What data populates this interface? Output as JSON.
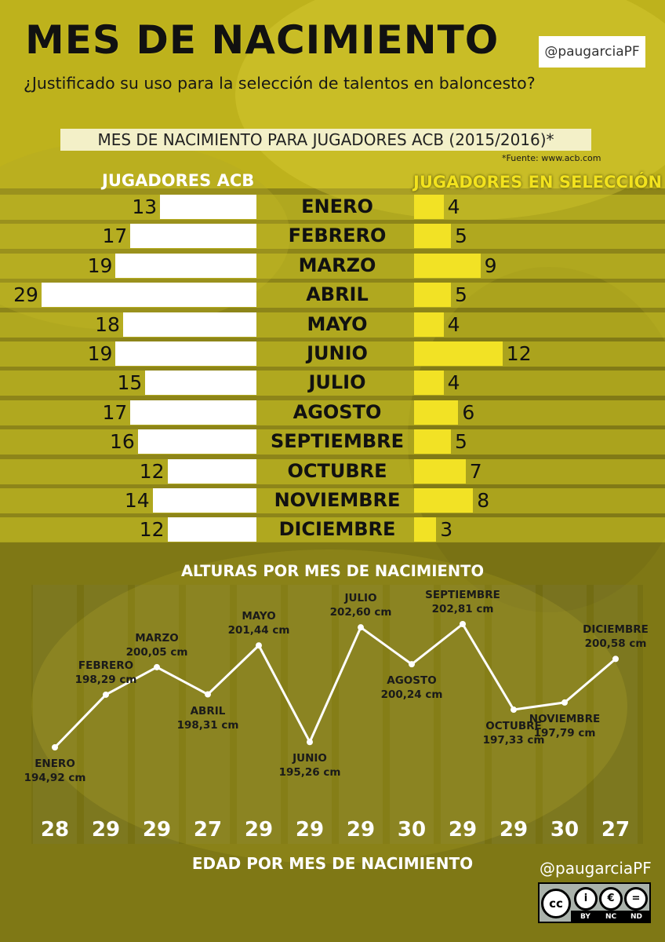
{
  "title": "MES DE NACIMIENTO",
  "subtitle": "¿Justificado su uso para la selección de talentos en baloncesto?",
  "handle": "@paugarciaPF",
  "section_title": "MES DE NACIMIENTO PARA JUGADORES ACB (2015/2016)*",
  "source_note": "*Fuente: www.acb.com",
  "license": {
    "icons": [
      "cc-icon",
      "by-icon",
      "nc-icon",
      "nd-icon"
    ],
    "labels": [
      "BY",
      "NC",
      "ND"
    ]
  },
  "colors": {
    "accent_yellow": "#f2e225",
    "background": "#8c8518",
    "bar_white": "#ffffff"
  },
  "chart_data": [
    {
      "type": "bar",
      "categories": [
        "ENERO",
        "FEBRERO",
        "MARZO",
        "ABRIL",
        "MAYO",
        "JUNIO",
        "JULIO",
        "AGOSTO",
        "SEPTIEMBRE",
        "OCTUBRE",
        "NOVIEMBRE",
        "DICIEMBRE"
      ],
      "series": [
        {
          "name": "JUGADORES ACB",
          "values": [
            13,
            17,
            19,
            29,
            18,
            19,
            15,
            17,
            16,
            12,
            14,
            12
          ]
        },
        {
          "name": "JUGADORES EN SELECCIÓN",
          "values": [
            4,
            5,
            9,
            5,
            4,
            12,
            4,
            6,
            5,
            7,
            8,
            3
          ]
        }
      ]
    },
    {
      "type": "line",
      "title": "ALTURAS POR MES DE NACIMIENTO",
      "categories": [
        "ENERO",
        "FEBRERO",
        "MARZO",
        "ABRIL",
        "MAYO",
        "JUNIO",
        "JULIO",
        "AGOSTO",
        "SEPTIEMBRE",
        "OCTUBRE",
        "NOVIEMBRE",
        "DICIEMBRE"
      ],
      "values": [
        194.92,
        198.29,
        200.05,
        198.31,
        201.44,
        195.26,
        202.6,
        200.24,
        202.81,
        197.33,
        197.79,
        200.58
      ],
      "value_labels": [
        "194,92 cm",
        "198,29 cm",
        "200,05 cm",
        "198,31 cm",
        "201,44 cm",
        "195,26 cm",
        "202,60 cm",
        "200,24 cm",
        "202,81 cm",
        "197,33 cm",
        "197,79 cm",
        "200,58 cm"
      ],
      "label_positions": [
        "below",
        "above",
        "above",
        "below",
        "above",
        "below",
        "above",
        "below",
        "above",
        "below",
        "below",
        "above"
      ],
      "grid": false
    },
    {
      "type": "table",
      "title": "EDAD POR MES DE NACIMIENTO",
      "categories": [
        "ENERO",
        "FEBRERO",
        "MARZO",
        "ABRIL",
        "MAYO",
        "JUNIO",
        "JULIO",
        "AGOSTO",
        "SEPTIEMBRE",
        "OCTUBRE",
        "NOVIEMBRE",
        "DICIEMBRE"
      ],
      "values": [
        28,
        29,
        29,
        27,
        29,
        29,
        29,
        30,
        29,
        29,
        30,
        27
      ]
    }
  ]
}
